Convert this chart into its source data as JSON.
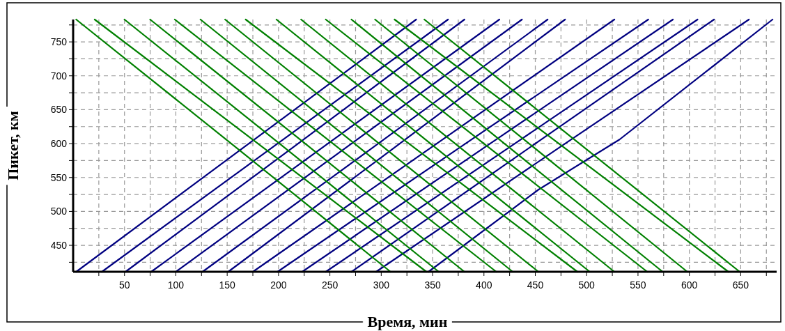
{
  "chart_data": {
    "type": "line",
    "xlabel": "Время, мин",
    "ylabel": "Пикет, км",
    "xlim": [
      0,
      685
    ],
    "ylim": [
      411,
      783
    ],
    "xticks": [
      {
        "value": 25,
        "label": null
      },
      50,
      {
        "value": 75,
        "label": null
      },
      100,
      {
        "value": 125,
        "label": null
      },
      150,
      {
        "value": 175,
        "label": null
      },
      200,
      {
        "value": 225,
        "label": null
      },
      250,
      {
        "value": 275,
        "label": null
      },
      300,
      {
        "value": 325,
        "label": null
      },
      350,
      {
        "value": 375,
        "label": null
      },
      400,
      {
        "value": 425,
        "label": null
      },
      450,
      {
        "value": 475,
        "label": null
      },
      500,
      {
        "value": 525,
        "label": null
      },
      550,
      {
        "value": 575,
        "label": null
      },
      600,
      {
        "value": 625,
        "label": null
      },
      650,
      {
        "value": 675,
        "label": null
      }
    ],
    "yticks": [
      {
        "value": 425,
        "label": null
      },
      450,
      {
        "value": 475,
        "label": null
      },
      500,
      {
        "value": 525,
        "label": null
      },
      550,
      {
        "value": 575,
        "label": null
      },
      600,
      {
        "value": 625,
        "label": null
      },
      650,
      {
        "value": 675,
        "label": null
      },
      700,
      {
        "value": 725,
        "label": null
      },
      750,
      {
        "value": 775,
        "label": null
      }
    ],
    "grid": true,
    "marker": "none",
    "line_style": "solid",
    "series": [
      {
        "color": "#000080",
        "x": [
          3,
          171,
          334
        ],
        "values": [
          411,
          600,
          783
        ]
      },
      {
        "color": "#000080",
        "x": [
          28,
          199,
          365
        ],
        "values": [
          411,
          600,
          783
        ]
      },
      {
        "color": "#000080",
        "x": [
          51,
          219,
          381
        ],
        "values": [
          411,
          600,
          783
        ]
      },
      {
        "color": "#000080",
        "x": [
          76,
          248,
          415
        ],
        "values": [
          411,
          600,
          783
        ]
      },
      {
        "color": "#000080",
        "x": [
          100,
          271,
          437
        ],
        "values": [
          411,
          600,
          783
        ]
      },
      {
        "color": "#000080",
        "x": [
          126,
          297,
          462
        ],
        "values": [
          411,
          600,
          783
        ]
      },
      {
        "color": "#000080",
        "x": [
          151,
          318,
          479
        ],
        "values": [
          411,
          600,
          783
        ]
      },
      {
        "color": "#000080",
        "x": [
          175,
          354,
          527
        ],
        "values": [
          411,
          600,
          783
        ]
      },
      {
        "color": "#000080",
        "x": [
          199,
          382,
          560
        ],
        "values": [
          411,
          600,
          783
        ]
      },
      {
        "color": "#000080",
        "x": [
          223,
          406,
          584
        ],
        "values": [
          411,
          600,
          783
        ]
      },
      {
        "color": "#000080",
        "x": [
          246,
          430,
          608
        ],
        "values": [
          411,
          600,
          783
        ]
      },
      {
        "color": "#000080",
        "x": [
          271,
          450,
          624
        ],
        "values": [
          411,
          600,
          783
        ]
      },
      {
        "color": "#000080",
        "x": [
          295,
          479,
          658
        ],
        "values": [
          411,
          600,
          783
        ]
      },
      {
        "color": "#000080",
        "x": [
          346,
          453,
          532,
          681
        ],
        "values": [
          411,
          532,
          606,
          783
        ]
      },
      {
        "color": "#008000",
        "x": [
          3,
          154,
          309
        ],
        "values": [
          783,
          600,
          411
        ]
      },
      {
        "color": "#008000",
        "x": [
          21,
          180,
          344
        ],
        "values": [
          783,
          600,
          411
        ]
      },
      {
        "color": "#008000",
        "x": [
          50,
          201,
          356
        ],
        "values": [
          783,
          600,
          411
        ]
      },
      {
        "color": "#008000",
        "x": [
          75,
          226,
          381
        ],
        "values": [
          783,
          600,
          411
        ]
      },
      {
        "color": "#008000",
        "x": [
          99,
          253,
          412
        ],
        "values": [
          783,
          600,
          411
        ]
      },
      {
        "color": "#008000",
        "x": [
          124,
          274,
          428
        ],
        "values": [
          783,
          600,
          411
        ]
      },
      {
        "color": "#008000",
        "x": [
          148,
          298,
          453
        ],
        "values": [
          783,
          600,
          411
        ]
      },
      {
        "color": "#008000",
        "x": [
          168,
          327,
          491
        ],
        "values": [
          783,
          600,
          411
        ]
      },
      {
        "color": "#008000",
        "x": [
          198,
          348,
          503
        ],
        "values": [
          783,
          600,
          411
        ]
      },
      {
        "color": "#008000",
        "x": [
          222,
          372,
          527
        ],
        "values": [
          783,
          600,
          411
        ]
      },
      {
        "color": "#008000",
        "x": [
          246,
          400,
          559
        ],
        "values": [
          783,
          600,
          411
        ]
      },
      {
        "color": "#008000",
        "x": [
          271,
          420,
          574
        ],
        "values": [
          783,
          600,
          411
        ]
      },
      {
        "color": "#008000",
        "x": [
          294,
          444,
          598
        ],
        "values": [
          783,
          600,
          411
        ]
      },
      {
        "color": "#008000",
        "x": [
          313,
          473,
          638
        ],
        "values": [
          783,
          600,
          411
        ]
      },
      {
        "color": "#008000",
        "x": [
          342,
          493,
          649
        ],
        "values": [
          783,
          600,
          411
        ]
      }
    ]
  }
}
